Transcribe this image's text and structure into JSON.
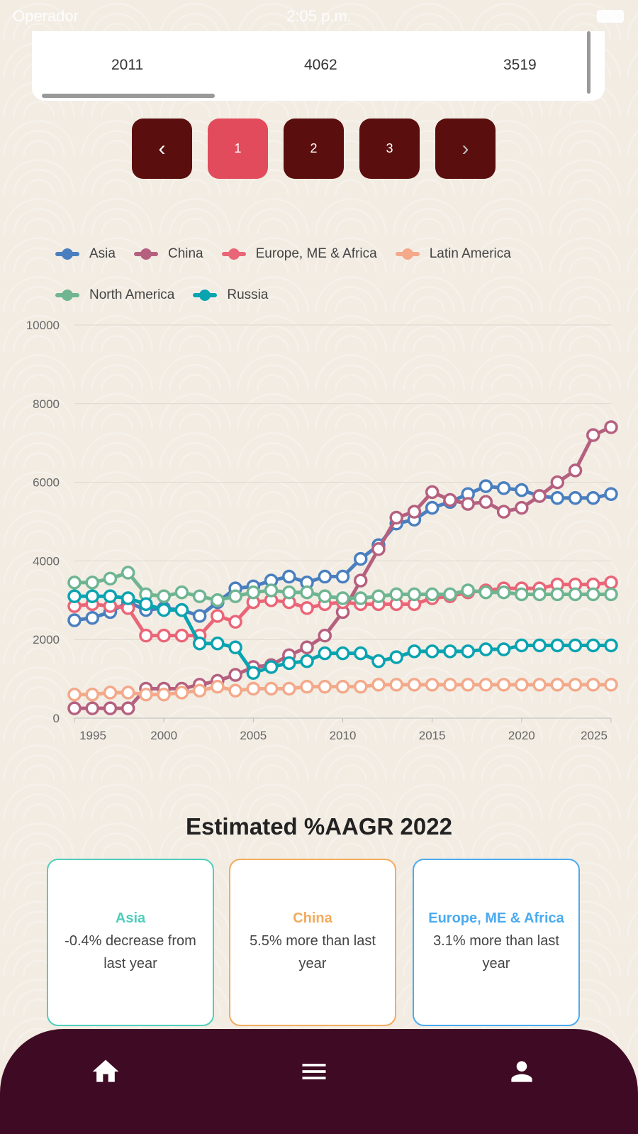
{
  "status_bar": {
    "carrier": "Operador",
    "time": "2:05 p.m."
  },
  "table_row": [
    "2011",
    "4062",
    "3519"
  ],
  "pagination": {
    "prev": "‹",
    "pages": [
      "1",
      "2",
      "3"
    ],
    "active": "1",
    "next": "›"
  },
  "colors": {
    "Asia": "#4a7fbf",
    "China": "#b5607f",
    "Europe, ME & Africa": "#ea6577",
    "Latin America": "#f3a98a",
    "North America": "#6fb592",
    "Russia": "#0aa3b0"
  },
  "chart_data": {
    "type": "line",
    "x": [
      1995,
      1996,
      1997,
      1998,
      1999,
      2000,
      2001,
      2002,
      2003,
      2004,
      2005,
      2006,
      2007,
      2008,
      2009,
      2010,
      2011,
      2012,
      2013,
      2014,
      2015,
      2016,
      2017,
      2018,
      2019,
      2020,
      2021,
      2022,
      2023,
      2024,
      2025
    ],
    "x_ticks": [
      "1995",
      "2000",
      "2005",
      "2010",
      "2015",
      "2020",
      "2025"
    ],
    "y_ticks": [
      "0",
      "2000",
      "4000",
      "6000",
      "8000",
      "10000"
    ],
    "ylim": [
      0,
      10000
    ],
    "legend": "top",
    "grid": true,
    "series": [
      {
        "name": "Asia",
        "values": [
          2490,
          2550,
          2700,
          2950,
          2750,
          2800,
          2750,
          2600,
          2950,
          3300,
          3350,
          3500,
          3600,
          3450,
          3600,
          3600,
          4050,
          4400,
          4950,
          5050,
          5350,
          5500,
          5700,
          5900,
          5850,
          5800,
          5650,
          5600,
          5600,
          5600,
          5700
        ]
      },
      {
        "name": "China",
        "values": [
          250,
          250,
          250,
          250,
          750,
          750,
          750,
          850,
          950,
          1100,
          1300,
          1350,
          1600,
          1800,
          2100,
          2700,
          3500,
          4300,
          5100,
          5250,
          5750,
          5550,
          5450,
          5500,
          5250,
          5350,
          5650,
          6000,
          6300,
          7200,
          7400
        ]
      },
      {
        "name": "Europe, ME & Africa",
        "values": [
          2850,
          2900,
          2850,
          2800,
          2100,
          2100,
          2100,
          2100,
          2600,
          2450,
          2950,
          3000,
          2950,
          2800,
          2900,
          2950,
          2900,
          2900,
          2900,
          2900,
          3050,
          3100,
          3200,
          3250,
          3300,
          3300,
          3300,
          3400,
          3400,
          3400,
          3450
        ]
      },
      {
        "name": "Latin America",
        "values": [
          600,
          600,
          650,
          650,
          600,
          600,
          650,
          700,
          800,
          700,
          750,
          750,
          750,
          800,
          800,
          800,
          800,
          850,
          850,
          850,
          850,
          850,
          850,
          850,
          850,
          850,
          850,
          850,
          850,
          850,
          850
        ]
      },
      {
        "name": "North America",
        "values": [
          3450,
          3450,
          3550,
          3700,
          3150,
          3100,
          3200,
          3100,
          3000,
          3100,
          3200,
          3250,
          3200,
          3200,
          3100,
          3050,
          3050,
          3100,
          3150,
          3150,
          3150,
          3150,
          3250,
          3200,
          3200,
          3150,
          3150,
          3150,
          3150,
          3150,
          3150
        ]
      },
      {
        "name": "Russia",
        "values": [
          3100,
          3100,
          3100,
          3050,
          2900,
          2750,
          2750,
          1900,
          1900,
          1800,
          1150,
          1300,
          1400,
          1450,
          1650,
          1650,
          1650,
          1450,
          1550,
          1700,
          1700,
          1700,
          1700,
          1750,
          1750,
          1850,
          1850,
          1850,
          1850,
          1850,
          1850
        ]
      }
    ]
  },
  "aagr": {
    "title": "Estimated %AAGR 2022",
    "cards": [
      {
        "region": "Asia",
        "text": "-0.4% decrease from last year",
        "color": "#4fcfbd"
      },
      {
        "region": "China",
        "text": "5.5% more than last year",
        "color": "#f2ab5e"
      },
      {
        "region": "Europe, ME & Africa",
        "text": "3.1% more than last year",
        "color": "#4aabf0"
      }
    ]
  },
  "nav": [
    "home-icon",
    "menu-icon",
    "profile-icon"
  ]
}
